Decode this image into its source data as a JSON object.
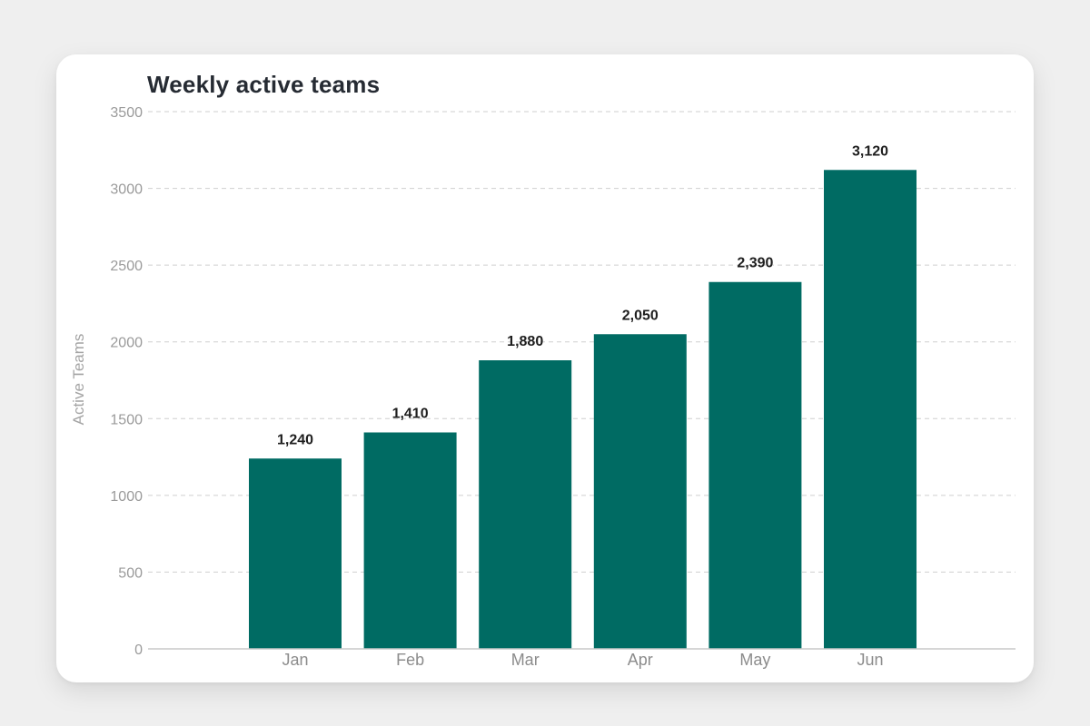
{
  "chart_data": {
    "type": "bar",
    "title": "Weekly active teams",
    "xlabel": "",
    "ylabel": "Active Teams",
    "categories": [
      "Jan",
      "Feb",
      "Mar",
      "Apr",
      "May",
      "Jun"
    ],
    "values": [
      1240,
      1410,
      1880,
      2050,
      2390,
      3120
    ],
    "data_labels": [
      "1,240",
      "1,410",
      "1,880",
      "2,050",
      "2,390",
      "3,120"
    ],
    "ylim": [
      0,
      3500
    ],
    "yticks": [
      0,
      500,
      1000,
      1500,
      2000,
      2500,
      3000,
      3500
    ],
    "grid": true,
    "legend": "none",
    "colors": {
      "bar": "#006b63",
      "grid": "#cfcfcf",
      "axis": "#c8c8c8"
    }
  }
}
